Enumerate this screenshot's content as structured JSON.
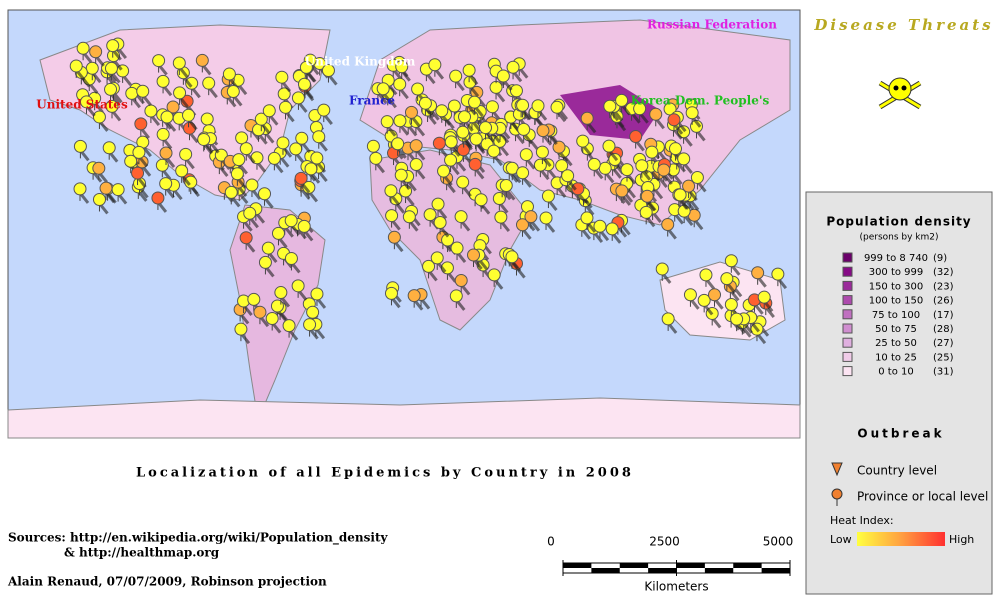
{
  "header": {
    "title": "Disease Threats"
  },
  "map": {
    "labels": [
      {
        "text": "Russian Federation",
        "color": "#e020e0"
      },
      {
        "text": "United Kingdom",
        "color": "#ffffff"
      },
      {
        "text": "United States",
        "color": "#e01010"
      },
      {
        "text": "France",
        "color": "#2020d0"
      },
      {
        "text": "Korea Dem. People's",
        "color": "#20c020"
      }
    ]
  },
  "caption": "Localization of all Epidemics by Country in 2008",
  "legend": {
    "title": "Population density",
    "subtitle": "(persons by km2)",
    "items": [
      {
        "range": "999 to 8 740",
        "count": "(9)",
        "color": "#6a006a"
      },
      {
        "range": "300 to  999",
        "count": "(32)",
        "color": "#860a86"
      },
      {
        "range": "150 to  300",
        "count": "(23)",
        "color": "#9a2a9a"
      },
      {
        "range": "100 to  150",
        "count": "(26)",
        "color": "#ad4aad"
      },
      {
        "range": "75 to  100",
        "count": "(17)",
        "color": "#c070c0"
      },
      {
        "range": "50 to   75",
        "count": "(28)",
        "color": "#d08ed0"
      },
      {
        "range": "25 to   50",
        "count": "(27)",
        "color": "#e0b0e0"
      },
      {
        "range": "10 to   25",
        "count": "(25)",
        "color": "#f0cce8"
      },
      {
        "range": "0 to   10",
        "count": "(31)",
        "color": "#fce4f2"
      }
    ],
    "outbreak_title": "Outbreak",
    "country_level": "Country level",
    "province_level": "Province or local level",
    "heat_title": "Heat Index:",
    "low": "Low",
    "high": "High"
  },
  "scale": {
    "ticks": [
      0,
      2500,
      5000
    ],
    "unit": "Kilometers"
  },
  "sources": {
    "line1": "Sources: http://en.wikipedia.org/wiki/Population_density",
    "line2": "& http://healthmap.org",
    "author": "Alain Renaud, 07/07/2009, Robinson projection"
  }
}
